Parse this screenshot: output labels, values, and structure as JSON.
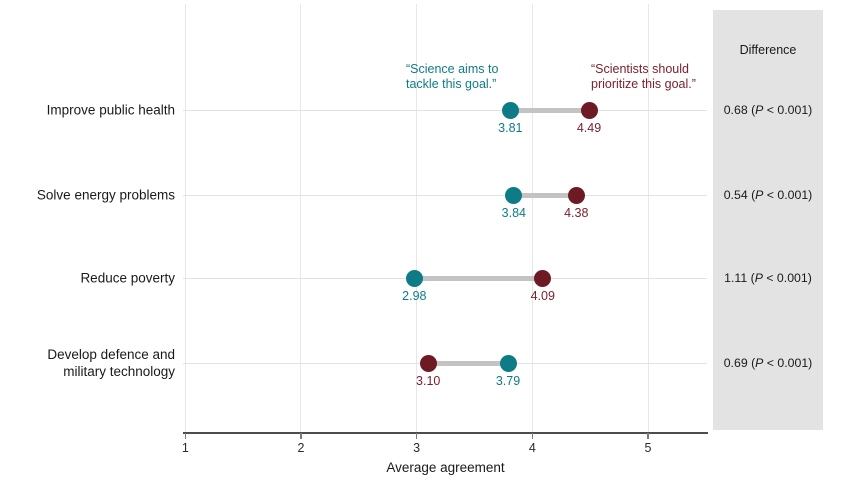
{
  "figure": {
    "background": "#ffffff",
    "panel_background": "#e3e3e3",
    "difference_header": "Difference",
    "p_label": "P"
  },
  "chart_data": {
    "type": "scatter",
    "variant": "dumbbell",
    "title": "",
    "xlabel": "Average agreement",
    "ylabel": "",
    "xlim": [
      0.98,
      5.51
    ],
    "xticks": [
      1,
      2,
      3,
      4,
      5
    ],
    "grid": true,
    "legend_position": "annotations above first row",
    "connector_color": "#c3c3c3",
    "categories": [
      "Improve public health",
      "Solve energy problems",
      "Reduce poverty",
      "Develop defence and\nmilitary technology"
    ],
    "series": [
      {
        "name": "Science aims to tackle this goal.",
        "annotation_lines": [
          "“Science aims to",
          "tackle this goal.”"
        ],
        "color": "#0e7c87",
        "label_color": "#0e7c87",
        "values": [
          3.81,
          3.84,
          2.98,
          3.79
        ]
      },
      {
        "name": "Scientists should prioritize this goal.",
        "annotation_lines": [
          "“Scientists should",
          "prioritize this goal.”"
        ],
        "color": "#6d1a25",
        "label_color": "#7d202e",
        "values": [
          4.49,
          4.38,
          4.09,
          3.1
        ]
      }
    ],
    "differences": [
      {
        "value": "0.68",
        "p": "< 0.001"
      },
      {
        "value": "0.54",
        "p": "< 0.001"
      },
      {
        "value": "1.11",
        "p": "< 0.001"
      },
      {
        "value": "0.69",
        "p": "< 0.001"
      }
    ]
  }
}
